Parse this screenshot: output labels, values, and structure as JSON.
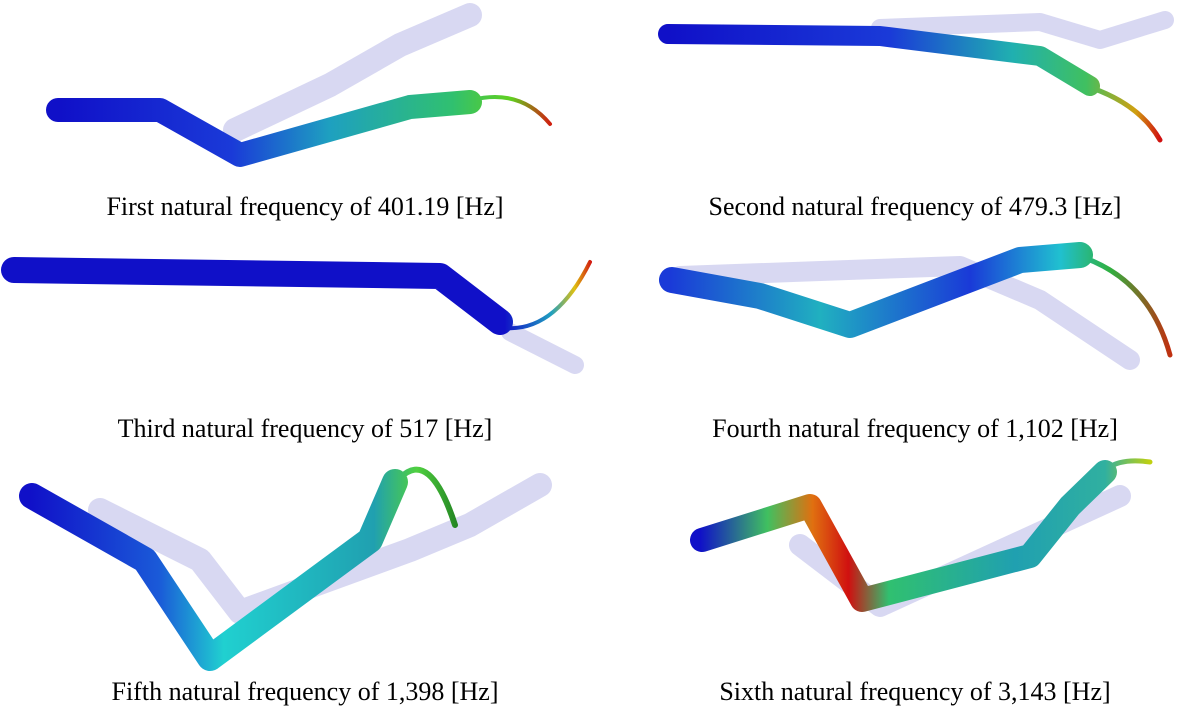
{
  "panels": [
    {
      "caption": "First natural frequency of 401.19 [Hz]"
    },
    {
      "caption": "Second natural frequency of 479.3 [Hz]"
    },
    {
      "caption": "Third natural frequency of 517 [Hz]"
    },
    {
      "caption": "Fourth natural frequency of 1,102 [Hz]"
    },
    {
      "caption": "Fifth natural frequency of 1,398 [Hz]"
    },
    {
      "caption": "Sixth natural frequency of 3,143 [Hz]"
    }
  ]
}
